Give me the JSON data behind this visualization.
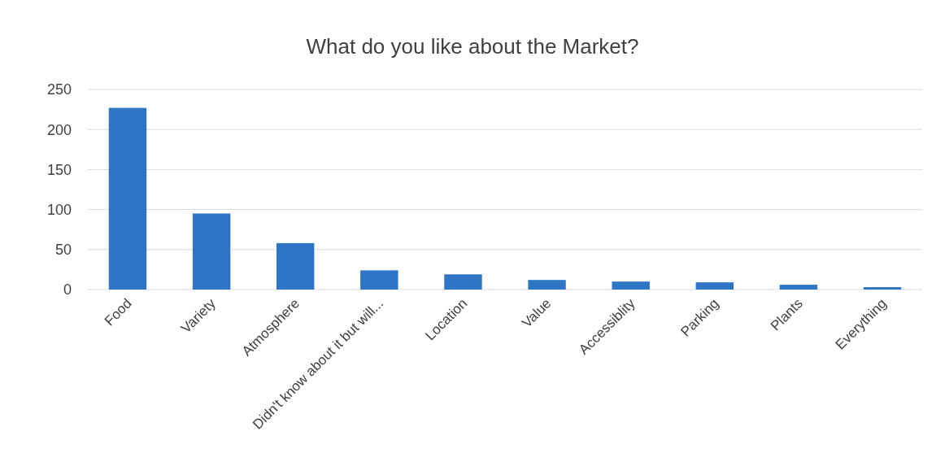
{
  "chart_data": {
    "type": "bar",
    "title": "What do you like about the Market?",
    "categories": [
      "Food",
      "Variety",
      "Atmosphere",
      "Didn't know about it but will...",
      "Location",
      "Value",
      "Accessiblity",
      "Parking",
      "Plants",
      "Everything"
    ],
    "values": [
      227,
      95,
      58,
      24,
      19,
      12,
      10,
      9,
      6,
      3
    ],
    "color": "#2e75c6",
    "ylim": [
      0,
      250
    ],
    "yticks": [
      0,
      50,
      100,
      150,
      200,
      250
    ],
    "grid": "y"
  }
}
